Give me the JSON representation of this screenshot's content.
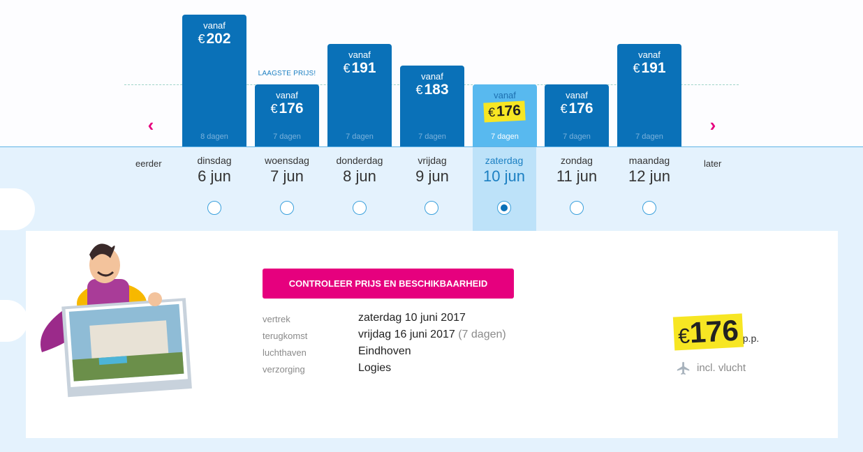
{
  "nav": {
    "prev_label": "eerder",
    "next_label": "later"
  },
  "lowest_label": "LAAGSTE PRIJS!",
  "dates": [
    {
      "day": "dinsdag",
      "date": "6 jun",
      "vanaf": "vanaf",
      "currency": "€",
      "price": "202",
      "duration": "8 dagen"
    },
    {
      "day": "woensdag",
      "date": "7 jun",
      "vanaf": "vanaf",
      "currency": "€",
      "price": "176",
      "duration": "7 dagen"
    },
    {
      "day": "donderdag",
      "date": "8 jun",
      "vanaf": "vanaf",
      "currency": "€",
      "price": "191",
      "duration": "7 dagen"
    },
    {
      "day": "vrijdag",
      "date": "9 jun",
      "vanaf": "vanaf",
      "currency": "€",
      "price": "183",
      "duration": "7 dagen"
    },
    {
      "day": "zaterdag",
      "date": "10 jun",
      "vanaf": "vanaf",
      "currency": "€",
      "price": "176",
      "duration": "7 dagen"
    },
    {
      "day": "zondag",
      "date": "11 jun",
      "vanaf": "vanaf",
      "currency": "€",
      "price": "176",
      "duration": "7 dagen"
    },
    {
      "day": "maandag",
      "date": "12 jun",
      "vanaf": "vanaf",
      "currency": "€",
      "price": "191",
      "duration": "7 dagen"
    }
  ],
  "selected_index": 4,
  "cta_label": "CONTROLEER PRIJS EN BESCHIKBAARHEID",
  "details": {
    "vertrek_label": "vertrek",
    "vertrek_value": "zaterdag 10 juni 2017",
    "terugkomst_label": "terugkomst",
    "terugkomst_value": "vrijdag 16 juni 2017",
    "terugkomst_note": "(7 dagen)",
    "luchthaven_label": "luchthaven",
    "luchthaven_value": "Eindhoven",
    "verzorging_label": "verzorging",
    "verzorging_value": "Logies"
  },
  "total": {
    "currency": "€",
    "price": "176",
    "per_person": "p.p.",
    "incl_label": "incl. vlucht"
  },
  "colors": {
    "bar": "#0a71b8",
    "selected_bar": "#58b9ef",
    "accent": "#e6007e",
    "highlight": "#f7e623"
  }
}
